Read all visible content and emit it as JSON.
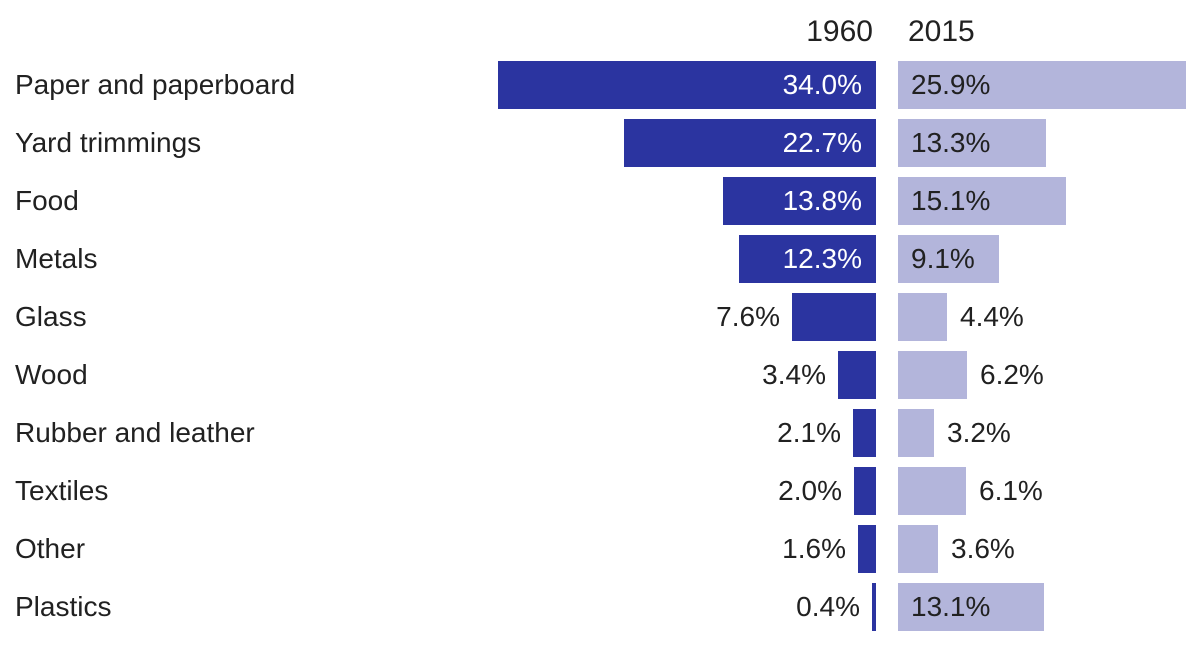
{
  "page": {
    "background_color": "#ffffff",
    "text_color": "#212121"
  },
  "chart_data": {
    "type": "bar",
    "orientation": "horizontal",
    "layout": "back-to-back butterfly comparison, 1960 bars grow leftward, 2015 bars grow rightward",
    "title": "",
    "column_headers": [
      "1960",
      "2015"
    ],
    "categories": [
      "Paper and paperboard",
      "Yard trimmings",
      "Food",
      "Metals",
      "Glass",
      "Wood",
      "Rubber and leather",
      "Textiles",
      "Other",
      "Plastics"
    ],
    "series": [
      {
        "name": "1960",
        "color": "#2b34a0",
        "inside_label_color": "#ffffff",
        "values": [
          34.0,
          22.7,
          13.8,
          12.3,
          7.6,
          3.4,
          2.1,
          2.0,
          1.6,
          0.4
        ],
        "labels": [
          "34.0%",
          "22.7%",
          "13.8%",
          "12.3%",
          "7.6%",
          "3.4%",
          "2.1%",
          "2.0%",
          "1.6%",
          "0.4%"
        ]
      },
      {
        "name": "2015",
        "color": "#b3b5db",
        "inside_label_color": "#212121",
        "values": [
          25.9,
          13.3,
          15.1,
          9.1,
          4.4,
          6.2,
          3.2,
          6.1,
          3.6,
          13.1
        ],
        "labels": [
          "25.9%",
          "13.3%",
          "15.1%",
          "9.1%",
          "4.4%",
          "6.2%",
          "3.2%",
          "6.1%",
          "3.6%",
          "13.1%"
        ]
      }
    ],
    "value_format": "percent, one decimal place",
    "axis_max_percent": 34.0,
    "label_inside_threshold_percent": 9.0,
    "grid": false,
    "legend_position": "column headers above bars"
  }
}
